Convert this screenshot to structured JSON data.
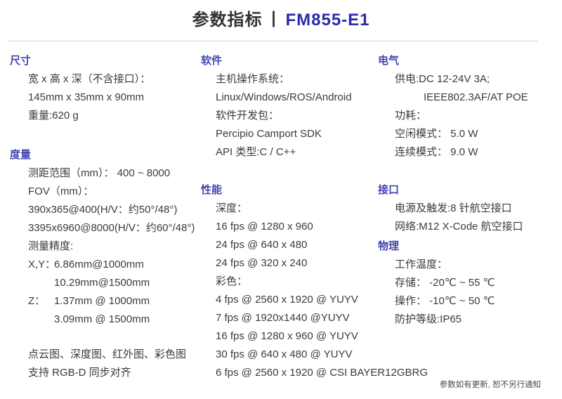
{
  "header": {
    "title": "参数指标",
    "separator": "丨",
    "model": "FM855-E1"
  },
  "footer": {
    "note": "参数如有更新, 恕不另行通知"
  },
  "colors": {
    "accent": "#2b2baa",
    "heading": "#4545b2",
    "body_text": "#3b3b3b",
    "divider": "#d8d8d8"
  },
  "columns": [
    {
      "id": "left",
      "sections": [
        {
          "id": "dimensions",
          "heading": "尺寸",
          "lines": [
            {
              "text": "宽 x 高 x 深（不含接口）："
            },
            {
              "text": "145mm x 35mm x 90mm"
            },
            {
              "text": "重量:620 g"
            }
          ]
        },
        {
          "id": "metrics",
          "heading": "度量",
          "lines": [
            {
              "text": "测距范围（mm）： 400 ~ 8000"
            },
            {
              "text": "FOV（mm）："
            },
            {
              "text": "390x365@400(H/V：约50°/48°)"
            },
            {
              "text": "3395x6960@8000(H/V：约60°/48°)"
            },
            {
              "text": "测量精度:"
            },
            {
              "label": "X,Y：",
              "text": "6.86mm@1000mm"
            },
            {
              "label": "",
              "text": "10.29mm@1500mm"
            },
            {
              "label": "Z：",
              "text": "1.37mm @ 1000mm"
            },
            {
              "label": "",
              "text": "3.09mm @ 1500mm"
            }
          ]
        },
        {
          "id": "imaging-note",
          "heading": "",
          "lines": [
            {
              "text": "点云图、深度图、红外图、彩色图"
            },
            {
              "text": "支持 RGB-D 同步对齐"
            }
          ]
        }
      ]
    },
    {
      "id": "middle",
      "sections": [
        {
          "id": "software",
          "heading": "软件",
          "lines": [
            {
              "text": "主机操作系统："
            },
            {
              "text": "Linux/Windows/ROS/Android"
            },
            {
              "text": "软件开发包："
            },
            {
              "text": "Percipio Camport SDK"
            },
            {
              "text": "API 类型:C / C++"
            }
          ]
        },
        {
          "id": "performance",
          "heading": "性能",
          "lines": [
            {
              "text": "深度："
            },
            {
              "text": "16 fps @ 1280 x 960"
            },
            {
              "text": "24 fps @ 640 x 480"
            },
            {
              "text": "24 fps @ 320 x 240"
            },
            {
              "text": "彩色："
            },
            {
              "text": "4 fps @ 2560 x 1920 @ YUYV"
            },
            {
              "text": "7 fps @ 1920x1440 @YUYV"
            },
            {
              "text": "16 fps @ 1280 x 960 @ YUYV"
            },
            {
              "text": "30 fps @ 640 x 480 @ YUYV"
            },
            {
              "text": "6 fps @ 2560 x 1920 @ CSI BAYER12GBRG"
            }
          ]
        }
      ]
    },
    {
      "id": "right",
      "sections": [
        {
          "id": "electrical",
          "heading": "电气",
          "lines": [
            {
              "text": "供电:DC 12-24V 3A;"
            },
            {
              "text": "IEEE802.3AF/AT POE",
              "indent": true
            },
            {
              "text": "功耗："
            },
            {
              "text": "空闲模式： 5.0 W"
            },
            {
              "text": "连续模式： 9.0 W"
            }
          ]
        },
        {
          "id": "interface",
          "heading": "接口",
          "lines": [
            {
              "text": "电源及触发:8 针航空接口"
            },
            {
              "text": "网络:M12 X-Code 航空接口"
            }
          ]
        },
        {
          "id": "physical",
          "heading": "物理",
          "lines": [
            {
              "text": "工作温度："
            },
            {
              "text": "存储： -20℃ ~ 55 ℃"
            },
            {
              "text": "操作： -10℃ ~ 50 ℃"
            },
            {
              "text": "防护等级:IP65"
            }
          ]
        }
      ]
    }
  ]
}
